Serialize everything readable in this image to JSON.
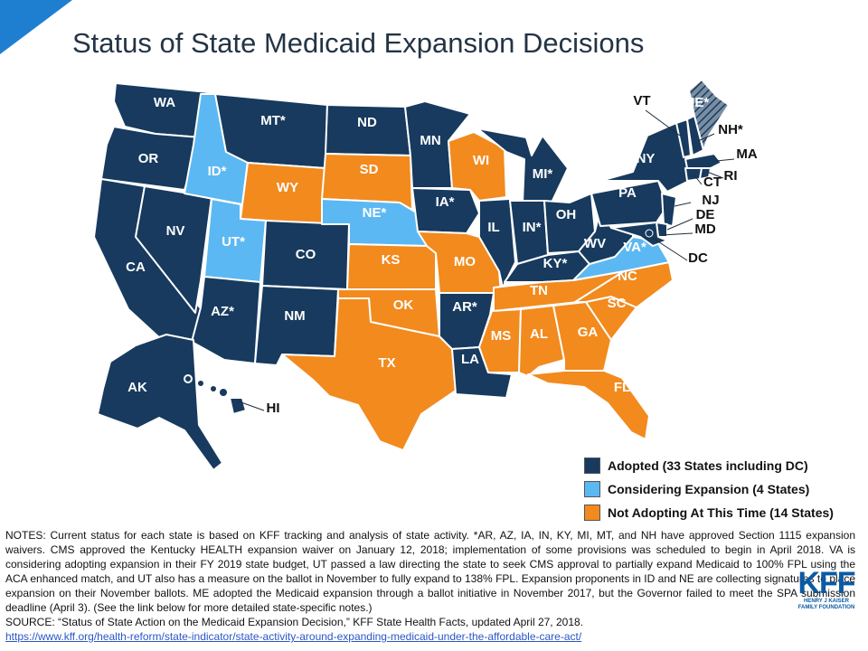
{
  "page": {
    "title": "Status of State Medicaid Expansion Decisions"
  },
  "colors": {
    "adopted": "#173a5e",
    "considering": "#5cb8f2",
    "not_adopting": "#f28a1e",
    "accent": "#1e7fd1"
  },
  "legend": {
    "adopted": "Adopted (33 States including DC)",
    "considering": "Considering Expansion (4 States)",
    "not_adopting": "Not Adopting At This Time (14 States)"
  },
  "states": {
    "WA": "WA",
    "OR": "OR",
    "CA": "CA",
    "NV": "NV",
    "ID": "ID*",
    "MT": "MT*",
    "WY": "WY",
    "UT": "UT*",
    "AZ": "AZ*",
    "CO": "CO",
    "NM": "NM",
    "ND": "ND",
    "SD": "SD",
    "NE": "NE*",
    "KS": "KS",
    "OK": "OK",
    "TX": "TX",
    "MN": "MN",
    "IA": "IA*",
    "MO": "MO",
    "AR": "AR*",
    "LA": "LA",
    "WI": "WI",
    "IL": "IL",
    "MI": "MI*",
    "IN": "IN*",
    "OH": "OH",
    "KY": "KY*",
    "TN": "TN",
    "MS": "MS",
    "AL": "AL",
    "GA": "GA",
    "FL": "FL",
    "SC": "SC",
    "NC": "NC",
    "VA": "VA*",
    "WV": "WV",
    "PA": "PA",
    "NY": "NY",
    "VT": "VT",
    "ME": "ME*",
    "NH": "NH*",
    "MA": "MA",
    "RI": "RI",
    "CT": "CT",
    "NJ": "NJ",
    "DE": "DE",
    "MD": "MD",
    "DC": "DC",
    "AK": "AK",
    "HI": "HI"
  },
  "notes": {
    "body": "NOTES: Current status for each state is based on KFF tracking and analysis of state activity. *AR, AZ, IA, IN, KY, MI, MT, and NH have approved Section 1115 expansion waivers. CMS approved the Kentucky HEALTH expansion waiver on January 12, 2018; implementation of some provisions was scheduled to begin in April 2018. VA is considering adopting expansion in their FY 2019 state budget, UT passed a law directing the state to seek CMS approval to partially expand Medicaid to 100% FPL using the ACA enhanced match, and UT also has a measure on the ballot in November to fully expand to 138% FPL. Expansion proponents in ID and NE are collecting signatures to place expansion on their November ballots. ME adopted the Medicaid expansion through a ballot initiative in November 2017, but the Governor failed to meet the SPA submission deadline (April 3). (See the link below for more detailed state-specific notes.)",
    "source": "SOURCE: “Status of State Action on the Medicaid Expansion Decision,” KFF State Health Facts, updated April 27, 2018.",
    "link": "https://www.kff.org/health-reform/state-indicator/state-activity-around-expanding-medicaid-under-the-affordable-care-act/"
  },
  "logo": {
    "letters": "KFF",
    "line1": "HENRY J KAISER",
    "line2": "FAMILY FOUNDATION"
  }
}
